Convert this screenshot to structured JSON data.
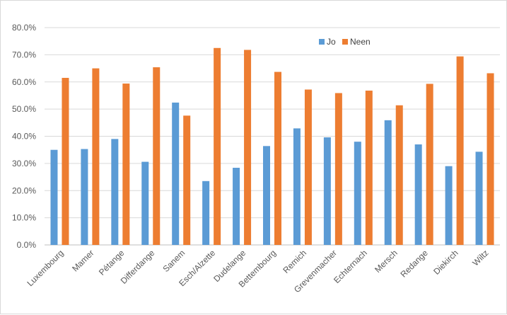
{
  "chart_data": {
    "type": "bar",
    "categories": [
      "Luxembourg",
      "Mamer",
      "Pétange",
      "Differdange",
      "Sanem",
      "Esch/Alzette",
      "Dudelange",
      "Bettembourg",
      "Remich",
      "Grevenmacher",
      "Echternach",
      "Mersch",
      "Redange",
      "Diekirch",
      "Wiltz"
    ],
    "series": [
      {
        "name": "Jo",
        "color": "#5b9bd5",
        "values": [
          35.0,
          35.3,
          39.0,
          30.6,
          52.4,
          23.5,
          28.4,
          36.4,
          42.9,
          39.6,
          38.0,
          45.9,
          37.0,
          29.0,
          34.3
        ]
      },
      {
        "name": "Neen",
        "color": "#ed7d31",
        "values": [
          61.5,
          65.0,
          59.4,
          65.4,
          47.6,
          72.5,
          71.8,
          63.7,
          57.2,
          55.9,
          56.8,
          51.4,
          59.3,
          69.4,
          63.2
        ]
      }
    ],
    "ylim": [
      0,
      80
    ],
    "yticks": [
      "0.0%",
      "10.0%",
      "20.0%",
      "30.0%",
      "40.0%",
      "50.0%",
      "60.0%",
      "70.0%",
      "80.0%"
    ],
    "grid": true,
    "legend_position": "top-right",
    "title": "",
    "xlabel": "",
    "ylabel": ""
  }
}
